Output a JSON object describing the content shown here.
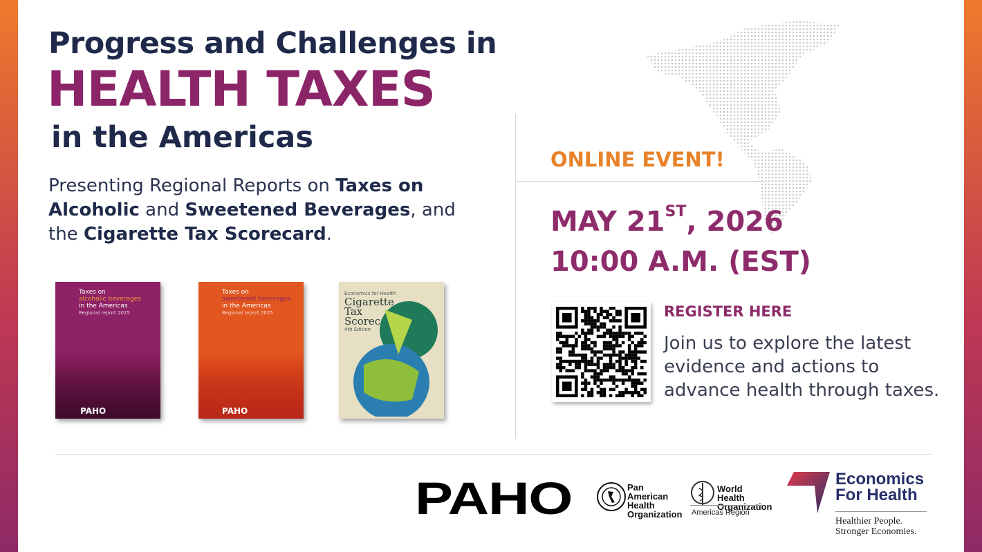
{
  "title": {
    "line1": "Progress and Challenges in",
    "line2": "HEALTH TAXES",
    "line3": "in the Americas"
  },
  "intro": {
    "p1": "Presenting Regional Reports on ",
    "b1": "Taxes on Alcoholic",
    "p2": " and ",
    "b2": "Sweetened Beverages",
    "p3": ", and the ",
    "b3": "Cigarette Tax Scorecard",
    "p4": "."
  },
  "books": [
    {
      "line1": "Taxes on",
      "line2": "alcoholic beverages",
      "line3": "in the Americas",
      "sub": "Regional report 2025",
      "publisher": "PAHO",
      "color": "#8e2266"
    },
    {
      "line1": "Taxes on",
      "line2": "sweetened beverages",
      "line3": "in the Americas",
      "sub": "Regional report 2025",
      "publisher": "PAHO",
      "color": "#e2561f"
    },
    {
      "line1": "Economics for Health",
      "line2": "Cigarette Tax Scorecard",
      "line3": "4th Edition",
      "color": "#e6dfc4"
    }
  ],
  "event": {
    "label": "ONLINE EVENT!",
    "date": "MAY 21",
    "date_sup": "ST",
    "year": ", 2026",
    "time": "10:00 A.M. (EST)",
    "register": "REGISTER HERE",
    "description": "Join us to explore the latest evidence and actions to advance health through taxes."
  },
  "logos": {
    "paho": "PAHO",
    "paho_full": "Pan American Health Organization",
    "who": "World Health Organization",
    "who_region": "Americas Region",
    "e4h_line1": "Economics",
    "e4h_line2": "For Health",
    "e4h_tag1": "Healthier People.",
    "e4h_tag2": "Stronger Economies."
  },
  "colors": {
    "navy": "#1f2a4a",
    "purple": "#8b2567",
    "orange": "#e8822a"
  }
}
